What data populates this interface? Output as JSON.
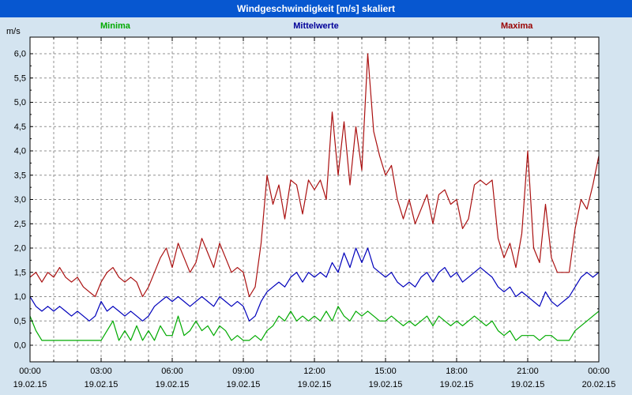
{
  "title": "Windgeschwindigkeit [m/s] skaliert",
  "colors": {
    "title_bar": "#0757d0",
    "page_background": "#d4e4f0",
    "plot_background": "#ffffff",
    "grid": "#909090",
    "frame": "#000000"
  },
  "legend": [
    {
      "label": "Minima",
      "color": "#00aa00"
    },
    {
      "label": "Mittelwerte",
      "color": "#000099"
    },
    {
      "label": "Maxima",
      "color": "#990000"
    }
  ],
  "chart_data": {
    "type": "line",
    "title": "Windgeschwindigkeit [m/s] skaliert",
    "ylabel": "m/s",
    "xlabel": "",
    "ylim": [
      0,
      6
    ],
    "x_span_hours": 24,
    "sample_interval_minutes": 15,
    "grid": "dashed",
    "legend_position": "top",
    "ytick_labels": [
      "0,0",
      "0,5",
      "1,0",
      "1,5",
      "2,0",
      "2,5",
      "3,0",
      "3,5",
      "4,0",
      "4,5",
      "5,0",
      "5,5",
      "6,0"
    ],
    "xticks": {
      "times": [
        "00:00",
        "03:00",
        "06:00",
        "09:00",
        "12:00",
        "15:00",
        "18:00",
        "21:00",
        "00:00"
      ],
      "dates": [
        "19.02.15",
        "19.02.15",
        "19.02.15",
        "19.02.15",
        "19.02.15",
        "19.02.15",
        "19.02.15",
        "19.02.15",
        "20.02.15"
      ]
    },
    "series": [
      {
        "name": "Minima",
        "color": "#00aa00",
        "values": [
          0.6,
          0.3,
          0.1,
          0.1,
          0.1,
          0.1,
          0.1,
          0.1,
          0.1,
          0.1,
          0.1,
          0.1,
          0.1,
          0.3,
          0.5,
          0.1,
          0.3,
          0.1,
          0.4,
          0.1,
          0.3,
          0.1,
          0.4,
          0.2,
          0.2,
          0.6,
          0.2,
          0.3,
          0.5,
          0.3,
          0.4,
          0.2,
          0.4,
          0.3,
          0.1,
          0.2,
          0.1,
          0.1,
          0.2,
          0.1,
          0.3,
          0.4,
          0.6,
          0.5,
          0.7,
          0.5,
          0.6,
          0.5,
          0.6,
          0.5,
          0.7,
          0.5,
          0.8,
          0.6,
          0.5,
          0.7,
          0.6,
          0.7,
          0.6,
          0.5,
          0.5,
          0.6,
          0.5,
          0.4,
          0.5,
          0.4,
          0.5,
          0.6,
          0.4,
          0.6,
          0.5,
          0.4,
          0.5,
          0.4,
          0.5,
          0.6,
          0.5,
          0.4,
          0.5,
          0.3,
          0.2,
          0.3,
          0.1,
          0.2,
          0.2,
          0.2,
          0.1,
          0.2,
          0.2,
          0.1,
          0.1,
          0.1,
          0.3,
          0.4,
          0.5,
          0.6,
          0.7
        ]
      },
      {
        "name": "Mittelwerte",
        "color": "#0000bb",
        "values": [
          1.0,
          0.8,
          0.7,
          0.8,
          0.7,
          0.8,
          0.7,
          0.6,
          0.7,
          0.6,
          0.5,
          0.6,
          0.9,
          0.7,
          0.8,
          0.7,
          0.6,
          0.7,
          0.6,
          0.5,
          0.6,
          0.8,
          0.9,
          1.0,
          0.9,
          1.0,
          0.9,
          0.8,
          0.9,
          1.0,
          0.9,
          0.8,
          1.0,
          0.9,
          0.8,
          0.9,
          0.8,
          0.5,
          0.6,
          0.9,
          1.1,
          1.2,
          1.3,
          1.2,
          1.4,
          1.5,
          1.3,
          1.5,
          1.4,
          1.5,
          1.4,
          1.7,
          1.5,
          1.9,
          1.6,
          2.0,
          1.7,
          2.0,
          1.6,
          1.5,
          1.4,
          1.5,
          1.3,
          1.2,
          1.3,
          1.2,
          1.4,
          1.5,
          1.3,
          1.5,
          1.6,
          1.4,
          1.5,
          1.3,
          1.4,
          1.5,
          1.6,
          1.5,
          1.4,
          1.2,
          1.1,
          1.2,
          1.0,
          1.1,
          1.0,
          0.9,
          0.8,
          1.1,
          0.9,
          0.8,
          0.9,
          1.0,
          1.2,
          1.4,
          1.5,
          1.4,
          1.5
        ]
      },
      {
        "name": "Maxima",
        "color": "#aa1010",
        "values": [
          1.4,
          1.5,
          1.3,
          1.5,
          1.4,
          1.6,
          1.4,
          1.3,
          1.4,
          1.2,
          1.1,
          1.0,
          1.3,
          1.5,
          1.6,
          1.4,
          1.3,
          1.4,
          1.3,
          1.0,
          1.2,
          1.5,
          1.8,
          2.0,
          1.6,
          2.1,
          1.8,
          1.5,
          1.7,
          2.2,
          1.9,
          1.6,
          2.1,
          1.8,
          1.5,
          1.6,
          1.5,
          1.0,
          1.2,
          2.1,
          3.5,
          2.9,
          3.3,
          2.6,
          3.4,
          3.3,
          2.7,
          3.4,
          3.2,
          3.4,
          3.0,
          4.8,
          3.5,
          4.6,
          3.3,
          4.5,
          3.6,
          6.0,
          4.4,
          3.9,
          3.5,
          3.7,
          3.0,
          2.6,
          3.0,
          2.5,
          2.8,
          3.1,
          2.5,
          3.1,
          3.2,
          2.9,
          3.0,
          2.4,
          2.6,
          3.3,
          3.4,
          3.3,
          3.4,
          2.2,
          1.8,
          2.1,
          1.6,
          2.3,
          4.0,
          2.0,
          1.7,
          2.9,
          1.8,
          1.5,
          1.5,
          1.5,
          2.4,
          3.0,
          2.8,
          3.3,
          3.9
        ]
      }
    ]
  }
}
